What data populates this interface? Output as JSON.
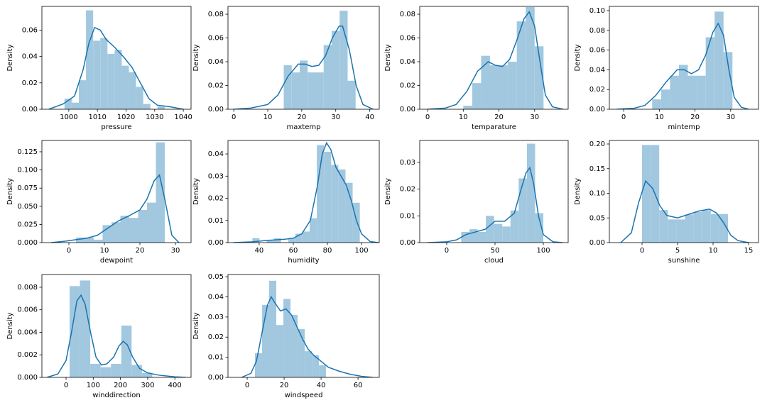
{
  "chart_data": [
    {
      "type": "histogram",
      "x_label": "pressure",
      "y_label": "Density",
      "color": "#a2c8e0",
      "kde_color": "#1a74b0",
      "bins": [
        998.5,
        1001,
        1003.5,
        1006,
        1008.5,
        1011,
        1013.5,
        1016,
        1018.5,
        1021,
        1023.5,
        1026,
        1028.5,
        1031,
        1033.5
      ],
      "values": [
        0.008,
        0.005,
        0.022,
        0.075,
        0.052,
        0.054,
        0.042,
        0.045,
        0.033,
        0.028,
        0.017,
        0.004,
        0,
        0.002
      ],
      "kde": {
        "x": [
          993,
          998,
          1002,
          1005,
          1007,
          1009,
          1011,
          1013,
          1016,
          1019,
          1022,
          1025,
          1028,
          1031,
          1035,
          1040
        ],
        "y": [
          0,
          0.004,
          0.01,
          0.03,
          0.05,
          0.062,
          0.06,
          0.053,
          0.047,
          0.04,
          0.032,
          0.02,
          0.008,
          0.003,
          0.002,
          0
        ]
      },
      "xlim": [
        990.6,
        1042.7
      ],
      "ylim": [
        0,
        0.078
      ],
      "xticks": [
        1000,
        1010,
        1020,
        1030,
        1040
      ],
      "yticks": [
        {
          "value": 0,
          "label": "0.00"
        },
        {
          "value": 0.02,
          "label": "0.02"
        },
        {
          "value": 0.04,
          "label": "0.04"
        },
        {
          "value": 0.06,
          "label": "0.06"
        }
      ]
    },
    {
      "type": "histogram",
      "x_label": "maxtemp",
      "y_label": "Density",
      "color": "#a2c8e0",
      "kde_color": "#1a74b0",
      "bins": [
        14.7,
        17.05,
        19.4,
        21.75,
        24.1,
        26.45,
        28.8,
        31.15,
        33.5,
        35.85
      ],
      "values": [
        0.037,
        0.031,
        0.041,
        0.031,
        0.031,
        0.054,
        0.066,
        0.083,
        0.024
      ],
      "kde": {
        "x": [
          0,
          5,
          10,
          13,
          16,
          19,
          21,
          23,
          25,
          27,
          29,
          31,
          32,
          34,
          36,
          38,
          41
        ],
        "y": [
          0,
          0.001,
          0.004,
          0.012,
          0.028,
          0.038,
          0.038,
          0.036,
          0.037,
          0.045,
          0.06,
          0.07,
          0.07,
          0.05,
          0.02,
          0.004,
          0
        ]
      },
      "xlim": [
        -1.7,
        42.8
      ],
      "ylim": [
        0,
        0.0866
      ],
      "xticks": [
        0,
        10,
        20,
        30,
        40
      ],
      "yticks": [
        {
          "value": 0,
          "label": "0.00"
        },
        {
          "value": 0.02,
          "label": "0.02"
        },
        {
          "value": 0.04,
          "label": "0.04"
        },
        {
          "value": 0.06,
          "label": "0.06"
        },
        {
          "value": 0.08,
          "label": "0.08"
        }
      ]
    },
    {
      "type": "histogram",
      "x_label": "temparature",
      "y_label": "Density",
      "color": "#a2c8e0",
      "kde_color": "#1a74b0",
      "bins": [
        10,
        12.5,
        15,
        17.5,
        20,
        22.5,
        25,
        27.5,
        30,
        32.5
      ],
      "values": [
        0.003,
        0.022,
        0.045,
        0.037,
        0.037,
        0.04,
        0.074,
        0.086,
        0.053
      ],
      "kde": {
        "x": [
          0,
          5,
          8,
          11,
          14,
          17,
          19,
          21,
          23,
          25,
          27,
          28.5,
          30,
          31.5,
          33,
          35,
          38
        ],
        "y": [
          0,
          0.001,
          0.004,
          0.015,
          0.032,
          0.04,
          0.037,
          0.036,
          0.042,
          0.058,
          0.076,
          0.082,
          0.07,
          0.04,
          0.012,
          0.002,
          0
        ]
      },
      "xlim": [
        -2.2,
        39.4
      ],
      "ylim": [
        0,
        0.0866
      ],
      "xticks": [
        0,
        10,
        20,
        30
      ],
      "yticks": [
        {
          "value": 0,
          "label": "0.00"
        },
        {
          "value": 0.02,
          "label": "0.02"
        },
        {
          "value": 0.04,
          "label": "0.04"
        },
        {
          "value": 0.06,
          "label": "0.06"
        },
        {
          "value": 0.08,
          "label": "0.08"
        }
      ]
    },
    {
      "type": "histogram",
      "x_label": "mintemp",
      "y_label": "Density",
      "color": "#a2c8e0",
      "kde_color": "#1a74b0",
      "bins": [
        8,
        10.5,
        13,
        15.5,
        18,
        20.5,
        23,
        25.5,
        28,
        30.5
      ],
      "values": [
        0.01,
        0.02,
        0.034,
        0.045,
        0.034,
        0.034,
        0.073,
        0.099,
        0.058
      ],
      "kde": {
        "x": [
          -2,
          3,
          6,
          9,
          12,
          15,
          17,
          19,
          21,
          23,
          25,
          26.5,
          28,
          29.5,
          31,
          33,
          35
        ],
        "y": [
          0,
          0.001,
          0.004,
          0.014,
          0.028,
          0.04,
          0.04,
          0.036,
          0.04,
          0.055,
          0.078,
          0.087,
          0.075,
          0.04,
          0.012,
          0.002,
          0
        ]
      },
      "xlim": [
        -4,
        37.8
      ],
      "ylim": [
        0,
        0.1043
      ],
      "xticks": [
        0,
        10,
        20,
        30
      ],
      "yticks": [
        {
          "value": 0,
          "label": "0.00"
        },
        {
          "value": 0.02,
          "label": "0.02"
        },
        {
          "value": 0.04,
          "label": "0.04"
        },
        {
          "value": 0.06,
          "label": "0.06"
        },
        {
          "value": 0.08,
          "label": "0.08"
        },
        {
          "value": 0.1,
          "label": "0.10"
        }
      ]
    },
    {
      "type": "histogram",
      "x_label": "dewpoint",
      "y_label": "Density",
      "color": "#a2c8e0",
      "kde_color": "#1a74b0",
      "bins": [
        2,
        4.5,
        7,
        9.5,
        12,
        14.5,
        17,
        19.5,
        22,
        24.5,
        27
      ],
      "values": [
        0.007,
        0.007,
        0.004,
        0.024,
        0.028,
        0.037,
        0.034,
        0.045,
        0.055,
        0.138
      ],
      "kde": {
        "x": [
          -5,
          -1,
          2,
          5,
          8,
          11,
          14,
          17,
          20,
          22,
          24,
          25.5,
          27,
          29,
          31
        ],
        "y": [
          0,
          0.002,
          0.004,
          0.006,
          0.01,
          0.02,
          0.03,
          0.037,
          0.045,
          0.06,
          0.085,
          0.093,
          0.06,
          0.01,
          0
        ]
      },
      "xlim": [
        -7.6,
        34.4
      ],
      "ylim": [
        0,
        0.1406
      ],
      "xticks": [
        0,
        10,
        20,
        30
      ],
      "yticks": [
        {
          "value": 0,
          "label": "0.000"
        },
        {
          "value": 0.025,
          "label": "0.025"
        },
        {
          "value": 0.05,
          "label": "0.050"
        },
        {
          "value": 0.075,
          "label": "0.075"
        },
        {
          "value": 0.1,
          "label": "0.100"
        },
        {
          "value": 0.125,
          "label": "0.125"
        }
      ]
    },
    {
      "type": "histogram",
      "x_label": "humidity",
      "y_label": "Density",
      "color": "#a2c8e0",
      "kde_color": "#1a74b0",
      "bins": [
        36,
        40.2,
        44.4,
        48.6,
        52.8,
        57,
        61.2,
        65.4,
        69.6,
        73.8,
        78,
        82.2,
        86.4,
        90.6,
        94.8,
        99
      ],
      "values": [
        0.002,
        0,
        0.001,
        0.002,
        0,
        0.002,
        0.004,
        0.005,
        0.011,
        0.044,
        0.041,
        0.035,
        0.033,
        0.027,
        0.018
      ],
      "kde": {
        "x": [
          25,
          35,
          45,
          55,
          60,
          65,
          70,
          74,
          77,
          79.5,
          82,
          85,
          88,
          91,
          94,
          97,
          100,
          105,
          110
        ],
        "y": [
          0,
          0.0003,
          0.001,
          0.0015,
          0.002,
          0.004,
          0.01,
          0.025,
          0.04,
          0.045,
          0.042,
          0.034,
          0.03,
          0.026,
          0.019,
          0.01,
          0.004,
          0.0005,
          0
        ]
      },
      "xlim": [
        21.7,
        110.4
      ],
      "ylim": [
        0,
        0.0461
      ],
      "xticks": [
        40,
        60,
        80,
        100
      ],
      "yticks": [
        {
          "value": 0,
          "label": "0.00"
        },
        {
          "value": 0.01,
          "label": "0.01"
        },
        {
          "value": 0.02,
          "label": "0.02"
        },
        {
          "value": 0.03,
          "label": "0.03"
        },
        {
          "value": 0.04,
          "label": "0.04"
        }
      ]
    },
    {
      "type": "histogram",
      "x_label": "cloud",
      "y_label": "Density",
      "color": "#a2c8e0",
      "kde_color": "#1a74b0",
      "bins": [
        15,
        23.5,
        32,
        40.5,
        49,
        57.5,
        66,
        74.5,
        83,
        91.5,
        100
      ],
      "values": [
        0.004,
        0.005,
        0.004,
        0.01,
        0.007,
        0.006,
        0.012,
        0.024,
        0.037,
        0.011
      ],
      "kde": {
        "x": [
          -20,
          0,
          10,
          20,
          30,
          40,
          50,
          60,
          70,
          77,
          82,
          86,
          90,
          95,
          100,
          110,
          120
        ],
        "y": [
          0,
          0.0003,
          0.001,
          0.003,
          0.004,
          0.005,
          0.008,
          0.008,
          0.011,
          0.02,
          0.026,
          0.028,
          0.022,
          0.01,
          0.003,
          0.0003,
          0
        ]
      },
      "xlim": [
        -27.9,
        125.7
      ],
      "ylim": [
        0,
        0.0382
      ],
      "xticks": [
        0,
        50,
        100
      ],
      "yticks": [
        {
          "value": 0,
          "label": "0.00"
        },
        {
          "value": 0.01,
          "label": "0.01"
        },
        {
          "value": 0.02,
          "label": "0.02"
        },
        {
          "value": 0.03,
          "label": "0.03"
        }
      ]
    },
    {
      "type": "histogram",
      "x_label": "sunshine",
      "y_label": "Density",
      "color": "#a2c8e0",
      "kde_color": "#1a74b0",
      "bins": [
        0,
        1.21,
        2.42,
        3.63,
        4.84,
        6.05,
        7.26,
        8.47,
        9.68,
        10.89,
        12.1
      ],
      "values": [
        0.198,
        0.198,
        0.066,
        0.047,
        0.047,
        0.057,
        0.062,
        0.066,
        0.058,
        0.058
      ],
      "kde": {
        "x": [
          -3,
          -1.5,
          -0.5,
          0.5,
          1.5,
          2.5,
          3.5,
          5,
          6.5,
          8,
          9.5,
          10.5,
          11.5,
          12.5,
          13.5,
          15
        ],
        "y": [
          0,
          0.02,
          0.08,
          0.125,
          0.11,
          0.075,
          0.055,
          0.05,
          0.057,
          0.064,
          0.068,
          0.06,
          0.04,
          0.015,
          0.004,
          0
        ]
      },
      "xlim": [
        -4.6,
        16.4
      ],
      "ylim": [
        0,
        0.2072
      ],
      "xticks": [
        0,
        5,
        10,
        15
      ],
      "yticks": [
        {
          "value": 0,
          "label": "0.00"
        },
        {
          "value": 0.05,
          "label": "0.05"
        },
        {
          "value": 0.1,
          "label": "0.10"
        },
        {
          "value": 0.15,
          "label": "0.15"
        },
        {
          "value": 0.2,
          "label": "0.20"
        }
      ]
    },
    {
      "type": "histogram",
      "x_label": "winddirection",
      "y_label": "Density",
      "color": "#a2c8e0",
      "kde_color": "#1a74b0",
      "bins": [
        13,
        51,
        89,
        127,
        165,
        203,
        241,
        279,
        317
      ],
      "values": [
        0.0081,
        0.0086,
        0.0012,
        0.0009,
        0.0012,
        0.0046,
        0.0011,
        0.0004
      ],
      "kde": {
        "x": [
          -70,
          -30,
          0,
          20,
          40,
          55,
          70,
          90,
          110,
          130,
          150,
          175,
          195,
          210,
          225,
          245,
          270,
          300,
          340,
          400,
          440
        ],
        "y": [
          0,
          0.0003,
          0.0015,
          0.004,
          0.0068,
          0.0073,
          0.0065,
          0.004,
          0.0018,
          0.0011,
          0.0012,
          0.0018,
          0.0028,
          0.0032,
          0.0029,
          0.0018,
          0.0008,
          0.0004,
          0.0002,
          5e-05,
          0
        ]
      },
      "xlim": [
        -88.8,
        459.5
      ],
      "ylim": [
        0,
        0.00913
      ],
      "xticks": [
        0,
        100,
        200,
        300,
        400
      ],
      "yticks": [
        {
          "value": 0,
          "label": "0.000"
        },
        {
          "value": 0.002,
          "label": "0.002"
        },
        {
          "value": 0.004,
          "label": "0.004"
        },
        {
          "value": 0.006,
          "label": "0.006"
        },
        {
          "value": 0.008,
          "label": "0.008"
        }
      ]
    },
    {
      "type": "histogram",
      "x_label": "windspeed",
      "y_label": "Density",
      "color": "#a2c8e0",
      "kde_color": "#1a74b0",
      "bins": [
        4.2,
        8.05,
        11.9,
        15.75,
        19.6,
        23.45,
        27.3,
        31.15,
        35,
        38.85,
        42.7
      ],
      "values": [
        0.012,
        0.036,
        0.048,
        0.026,
        0.039,
        0.031,
        0.024,
        0.013,
        0.011,
        0.006
      ],
      "kde": {
        "x": [
          -3,
          2,
          5,
          8,
          11,
          13,
          15,
          18,
          21,
          24,
          27,
          30,
          33,
          36,
          40,
          44,
          50,
          56,
          62,
          68
        ],
        "y": [
          0,
          0.002,
          0.008,
          0.022,
          0.036,
          0.04,
          0.037,
          0.033,
          0.034,
          0.031,
          0.025,
          0.019,
          0.014,
          0.011,
          0.008,
          0.005,
          0.003,
          0.0015,
          0.0005,
          0
        ]
      },
      "xlim": [
        -10.4,
        71.5
      ],
      "ylim": [
        0,
        0.0511
      ],
      "xticks": [
        0,
        20,
        40,
        60
      ],
      "yticks": [
        {
          "value": 0,
          "label": "0.00"
        },
        {
          "value": 0.01,
          "label": "0.01"
        },
        {
          "value": 0.02,
          "label": "0.02"
        },
        {
          "value": 0.03,
          "label": "0.03"
        },
        {
          "value": 0.04,
          "label": "0.04"
        },
        {
          "value": 0.05,
          "label": "0.05"
        }
      ]
    }
  ]
}
